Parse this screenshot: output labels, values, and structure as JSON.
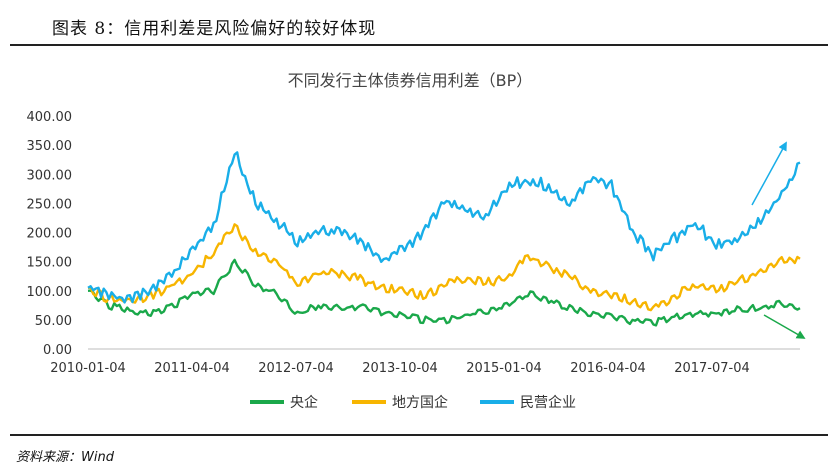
{
  "figure": {
    "caption": "图表 8：信用利差是风险偏好的较好体现",
    "source": "资料来源：Wind"
  },
  "chart_data": {
    "type": "line",
    "title": "不同发行主体债券信用利差（BP）",
    "xlabel": "",
    "ylabel": "",
    "ylim": [
      0,
      400
    ],
    "yticks": [
      "0.00",
      "50.00",
      "100.00",
      "150.00",
      "200.00",
      "250.00",
      "300.00",
      "350.00",
      "400.00"
    ],
    "xticks": [
      "2010-01-04",
      "2011-04-04",
      "2012-07-04",
      "2013-10-04",
      "2015-01-04",
      "2016-04-04",
      "2017-07-04"
    ],
    "x": [
      "2010-01",
      "2010-04",
      "2010-07",
      "2010-10",
      "2011-01",
      "2011-04",
      "2011-07",
      "2011-10",
      "2012-01",
      "2012-04",
      "2012-07",
      "2012-10",
      "2013-01",
      "2013-04",
      "2013-07",
      "2013-10",
      "2014-01",
      "2014-04",
      "2014-07",
      "2014-10",
      "2015-01",
      "2015-04",
      "2015-07",
      "2015-10",
      "2016-01",
      "2016-04",
      "2016-07",
      "2016-10",
      "2017-01",
      "2017-04",
      "2017-07",
      "2017-10",
      "2018-01",
      "2018-04",
      "2018-06"
    ],
    "series": [
      {
        "name": "央企",
        "color": "#1aa84a",
        "values": [
          100,
          75,
          65,
          62,
          72,
          95,
          100,
          150,
          110,
          95,
          60,
          75,
          70,
          72,
          62,
          58,
          50,
          48,
          58,
          65,
          75,
          95,
          85,
          70,
          60,
          55,
          48,
          45,
          55,
          60,
          62,
          68,
          70,
          80,
          70
        ]
      },
      {
        "name": "地方国企",
        "color": "#f7b500",
        "values": [
          105,
          85,
          85,
          90,
          110,
          130,
          165,
          210,
          165,
          150,
          110,
          130,
          130,
          120,
          105,
          100,
          90,
          110,
          120,
          115,
          120,
          160,
          140,
          125,
          100,
          95,
          80,
          70,
          90,
          110,
          100,
          115,
          130,
          150,
          155
        ]
      },
      {
        "name": "民营企业",
        "color": "#19aee8",
        "values": [
          105,
          90,
          85,
          100,
          125,
          170,
          210,
          340,
          250,
          220,
          185,
          205,
          200,
          185,
          150,
          170,
          200,
          250,
          240,
          230,
          280,
          290,
          280,
          250,
          290,
          280,
          200,
          160,
          190,
          215,
          180,
          190,
          220,
          260,
          320
        ]
      }
    ],
    "legend_position": "bottom"
  }
}
